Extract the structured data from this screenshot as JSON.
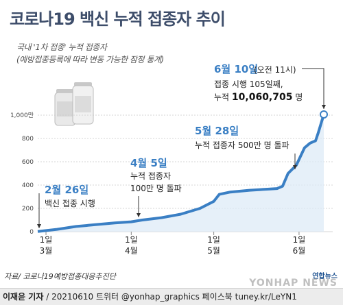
{
  "title": "코로나19 백신 누적 접종자 추이",
  "subtitle": "국내 '1차 접종' 누적 접종자",
  "subtitle2": "(예방접종등록에 따라 변동 가능한 잠정 통계)",
  "source": "자료/ 코로나19예방접종대응추진단",
  "credit": {
    "author": "이재윤 기자",
    "rest": " / 20210610   트위터 @yonhap_graphics   페이스북 tuney.kr/LeYN1"
  },
  "logo": {
    "small": "연합뉴스",
    "big": "YONHAP NEWS"
  },
  "annotations": [
    {
      "date": "2월 26일",
      "lines": [
        "백신 접종 시행"
      ]
    },
    {
      "date": "4월 5일",
      "lines": [
        "누적 접종자",
        "100만 명 돌파"
      ]
    },
    {
      "date": "5월 28일",
      "lines": [
        "누적 접종자 500만 명 돌파"
      ]
    },
    {
      "date": "6월 10일",
      "time": "(오전 11시)",
      "line1": "접종 시행 105일째,",
      "line2_prefix": "누적 ",
      "line2_value": "10,060,705",
      "line2_suffix": " 명"
    }
  ],
  "chart_data": {
    "type": "area",
    "title": "코로나19 백신 누적 접종자 추이",
    "ylabel": "",
    "ylim": [
      0,
      1000
    ],
    "y_unit": "만",
    "yticks": [
      "0",
      "200",
      "400",
      "600",
      "800",
      "1,000만"
    ],
    "xticks": [
      {
        "day": "1일",
        "month": "3월"
      },
      {
        "day": "1일",
        "month": "4월"
      },
      {
        "day": "1일",
        "month": "5월"
      },
      {
        "day": "1일",
        "month": "6월"
      }
    ],
    "x_start_date": "2021-02-26",
    "color": "#3a7fc4",
    "series": [
      {
        "dates": [
          "2021-02-26",
          "2021-03-05",
          "2021-03-12",
          "2021-03-19",
          "2021-03-26",
          "2021-04-01",
          "2021-04-05",
          "2021-04-12",
          "2021-04-19",
          "2021-04-26",
          "2021-05-01",
          "2021-05-03",
          "2021-05-07",
          "2021-05-14",
          "2021-05-21",
          "2021-05-24",
          "2021-05-26",
          "2021-05-28",
          "2021-05-31",
          "2021-06-03",
          "2021-06-05",
          "2021-06-07",
          "2021-06-08",
          "2021-06-10"
        ],
        "values": [
          2,
          20,
          45,
          60,
          75,
          85,
          100,
          120,
          150,
          200,
          260,
          320,
          340,
          355,
          365,
          370,
          390,
          500,
          570,
          720,
          760,
          780,
          850,
          1006
        ]
      }
    ]
  }
}
